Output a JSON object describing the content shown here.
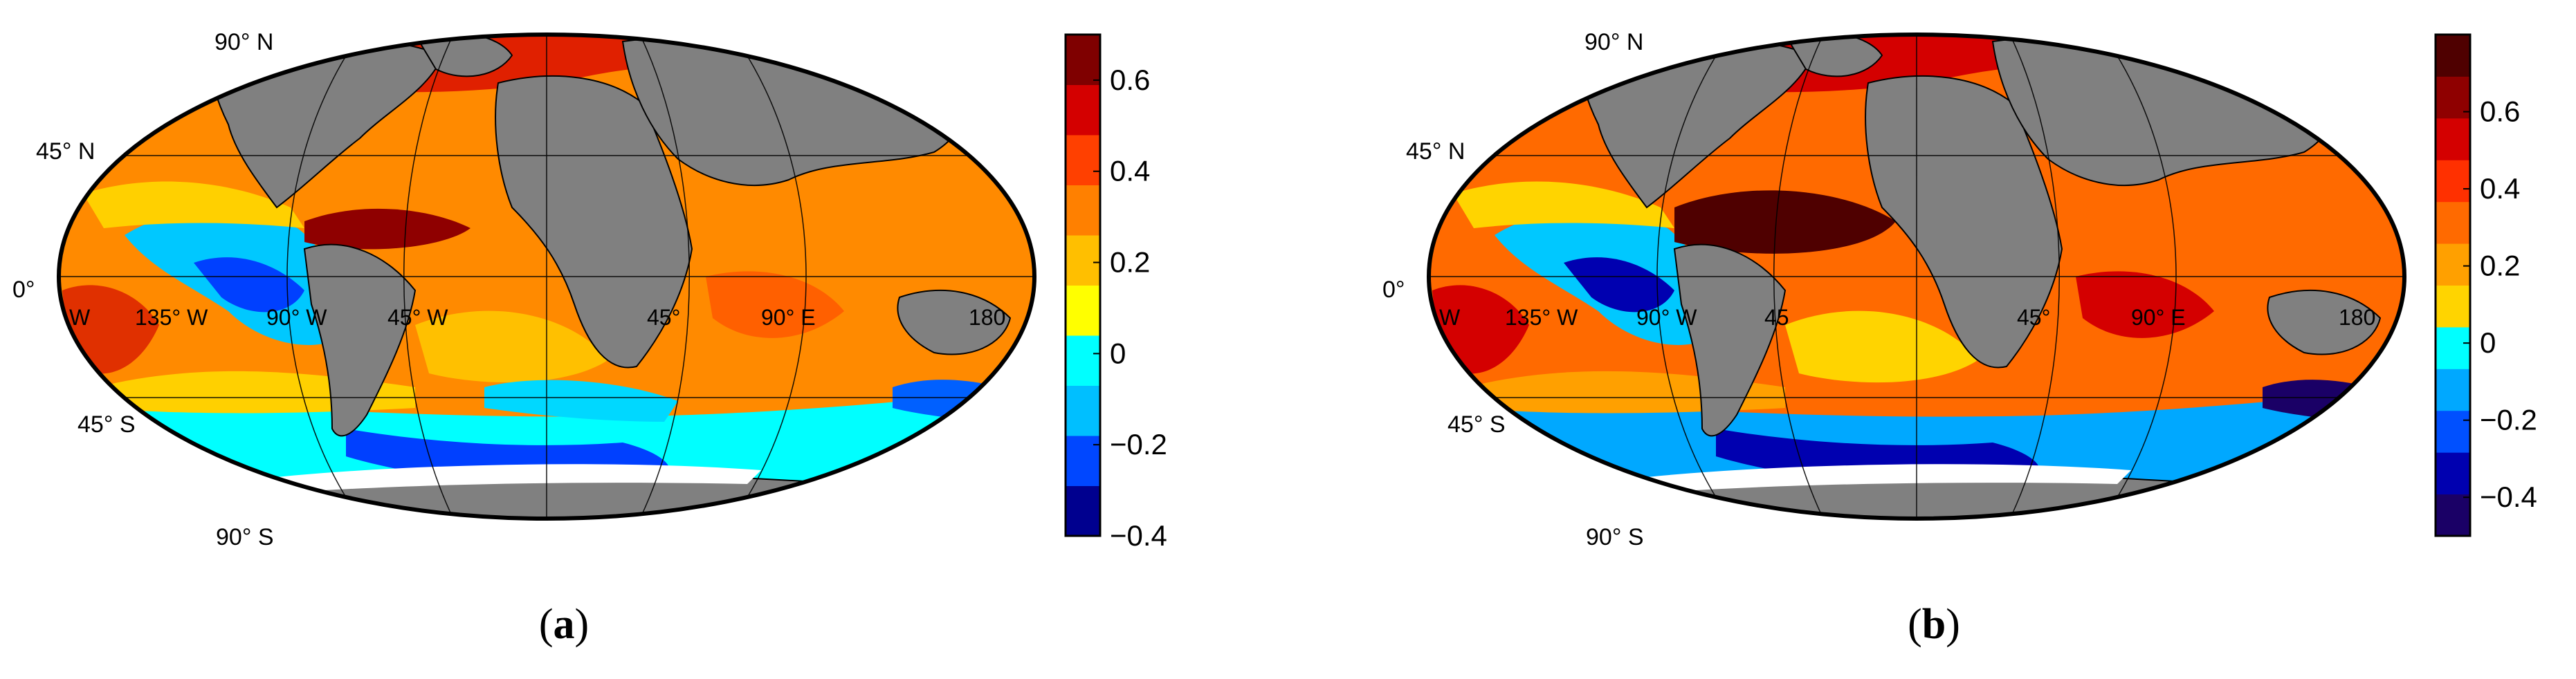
{
  "panels": [
    {
      "label": "(a)",
      "label_letter": "a",
      "lat_labels": [
        "90° N",
        "45° N",
        "0°",
        "45° S",
        "90° S"
      ],
      "lon_labels": [
        "W",
        "135° W",
        "90° W",
        "45° W",
        "45°",
        "90° E",
        "180"
      ],
      "colorbar": {
        "ticks": [
          "0.6",
          "0.4",
          "0.2",
          "0",
          "−0.2",
          "−0.4"
        ],
        "tick_values": [
          0.6,
          0.4,
          0.2,
          0,
          -0.2,
          -0.4
        ],
        "range": [
          -0.4,
          0.7
        ],
        "colors": [
          "#00008f",
          "#0047ff",
          "#00bfff",
          "#00ffff",
          "#ffff00",
          "#ffbf00",
          "#ff8000",
          "#ff4000",
          "#d40000",
          "#7f0000"
        ]
      }
    },
    {
      "label": "(b)",
      "label_letter": "b",
      "lat_labels": [
        "90° N",
        "45° N",
        "0°",
        "45° S",
        "90° S"
      ],
      "lon_labels": [
        "W",
        "135° W",
        "90° W",
        "45",
        "45°",
        "90° E",
        "180"
      ],
      "colorbar": {
        "ticks": [
          "0.6",
          "0.4",
          "0.2",
          "0",
          "−0.2",
          "−0.4"
        ],
        "tick_values": [
          0.6,
          0.4,
          0.2,
          0,
          -0.2,
          -0.4
        ],
        "range": [
          -0.5,
          0.8
        ],
        "colors": [
          "#1a0066",
          "#0000b0",
          "#0050ff",
          "#00a8ff",
          "#00ffff",
          "#ffd400",
          "#ffa000",
          "#ff6a00",
          "#ff3000",
          "#d40000",
          "#8f0000",
          "#4f0000"
        ]
      }
    }
  ],
  "map_colors": {
    "land": "#808080",
    "ice": "#ffffff",
    "grid": "#000000"
  }
}
